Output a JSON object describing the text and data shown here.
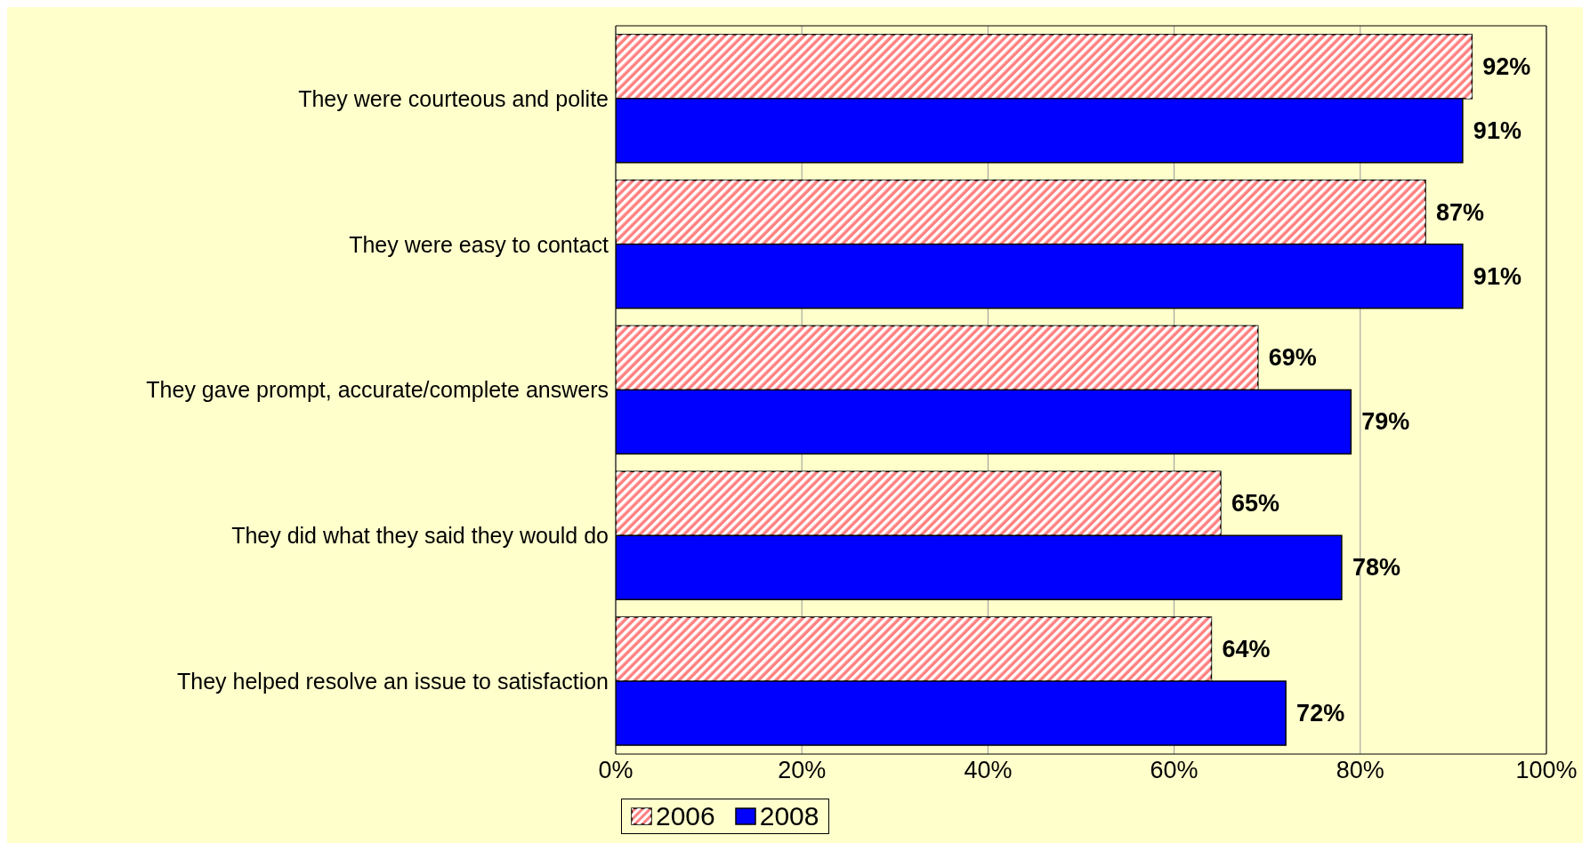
{
  "chart_data": {
    "type": "bar",
    "orientation": "horizontal",
    "categories": [
      "They were courteous and polite",
      "They were easy to contact",
      "They gave prompt, accurate/complete answers",
      "They did what they said they would do",
      "They helped resolve an issue to satisfaction"
    ],
    "series": [
      {
        "name": "2006",
        "color": "#ff8080",
        "values": [
          92,
          87,
          69,
          65,
          64
        ],
        "value_labels": [
          "92%",
          "87%",
          "69%",
          "65%",
          "64%"
        ]
      },
      {
        "name": "2008",
        "color": "#0000ff",
        "values": [
          91,
          91,
          79,
          78,
          72
        ],
        "value_labels": [
          "91%",
          "91%",
          "79%",
          "78%",
          "72%"
        ]
      }
    ],
    "xlim": [
      0,
      100
    ],
    "xticks": [
      {
        "value": 0,
        "label": "0%"
      },
      {
        "value": 20,
        "label": "20%"
      },
      {
        "value": 40,
        "label": "40%"
      },
      {
        "value": 60,
        "label": "60%"
      },
      {
        "value": 80,
        "label": "80%"
      },
      {
        "value": 100,
        "label": "100%"
      }
    ],
    "grid": "x",
    "legend": "bottom"
  }
}
